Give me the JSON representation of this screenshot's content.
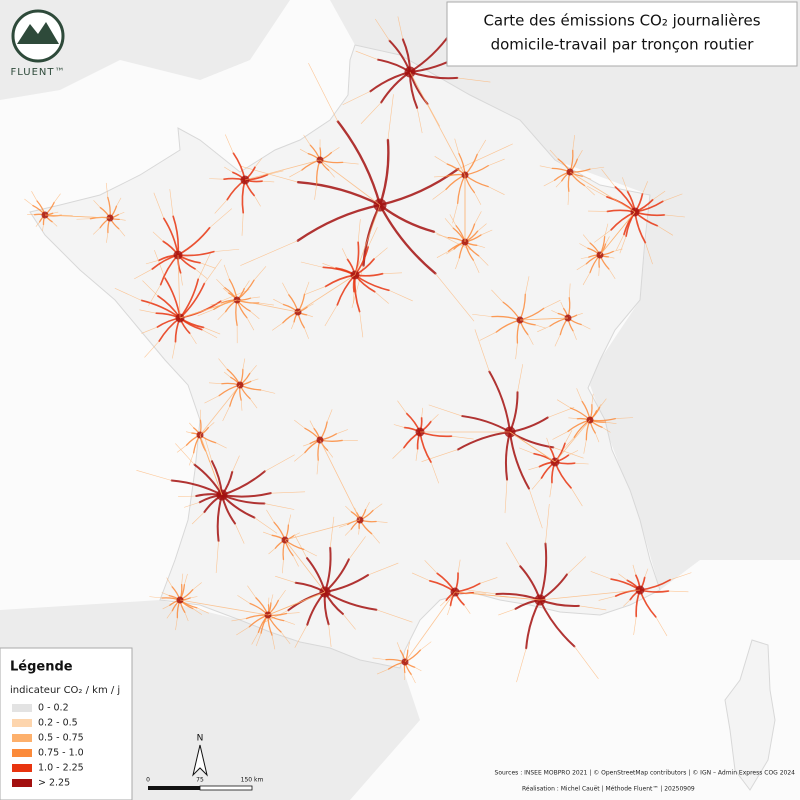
{
  "header": {
    "title_lines": [
      "Carte des émissions CO₂ journalières",
      "domicile-travail par tronçon routier"
    ],
    "logo": "FLUENT™"
  },
  "legend": {
    "title": "Légende",
    "subtitle": "indicateur CO₂ / km / j",
    "items": [
      {
        "label": "0 - 0.2",
        "color": "#e3e3e3"
      },
      {
        "label": "0.2 - 0.5",
        "color": "#fdd5ad"
      },
      {
        "label": "0.5 - 0.75",
        "color": "#fdb06c"
      },
      {
        "label": "0.75 - 1.0",
        "color": "#fb8a3a"
      },
      {
        "label": "1.0 - 2.25",
        "color": "#e8340f"
      },
      {
        "label": "> 2.25",
        "color": "#a3100f"
      }
    ]
  },
  "scale_bar": {
    "north": "N",
    "labels": [
      "0",
      "75",
      "150 km"
    ]
  },
  "footer": {
    "sources": "Sources : INSEE MOBPRO 2021 | © OpenStreetMap contributors | © IGN – Admin Express COG 2024",
    "credit": "Réalisation : Michel Cauët | Méthode Fluent™ | 20250909"
  }
}
